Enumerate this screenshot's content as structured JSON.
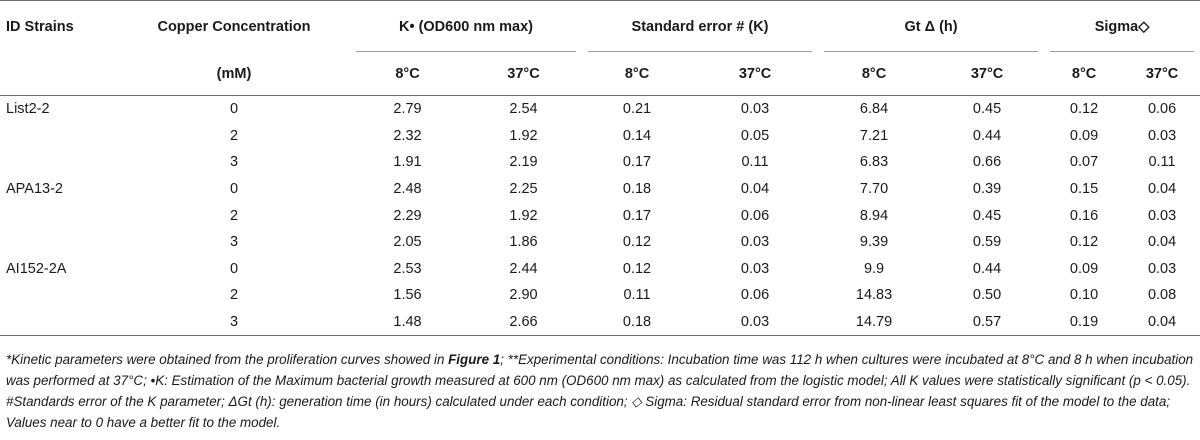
{
  "headers": {
    "strain": "ID Strains",
    "copper": "Copper Concentration",
    "copper_unit": "(mM)",
    "k": "K• (OD600 nm max)",
    "se": "Standard error # (K)",
    "gt": "Gt Δ (h)",
    "sigma": "Sigma◇",
    "temp_low": "8°C",
    "temp_high": "37°C"
  },
  "rows": [
    {
      "strain": "List2-2",
      "cu": "0",
      "k8": "2.79",
      "k37": "2.54",
      "se8": "0.21",
      "se37": "0.03",
      "gt8": "6.84",
      "gt37": "0.45",
      "s8": "0.12",
      "s37": "0.06"
    },
    {
      "strain": "",
      "cu": "2",
      "k8": "2.32",
      "k37": "1.92",
      "se8": "0.14",
      "se37": "0.05",
      "gt8": "7.21",
      "gt37": "0.44",
      "s8": "0.09",
      "s37": "0.03"
    },
    {
      "strain": "",
      "cu": "3",
      "k8": "1.91",
      "k37": "2.19",
      "se8": "0.17",
      "se37": "0.11",
      "gt8": "6.83",
      "gt37": "0.66",
      "s8": "0.07",
      "s37": "0.11"
    },
    {
      "strain": "APA13-2",
      "cu": "0",
      "k8": "2.48",
      "k37": "2.25",
      "se8": "0.18",
      "se37": "0.04",
      "gt8": "7.70",
      "gt37": "0.39",
      "s8": "0.15",
      "s37": "0.04"
    },
    {
      "strain": "",
      "cu": "2",
      "k8": "2.29",
      "k37": "1.92",
      "se8": "0.17",
      "se37": "0.06",
      "gt8": "8.94",
      "gt37": "0.45",
      "s8": "0.16",
      "s37": "0.03"
    },
    {
      "strain": "",
      "cu": "3",
      "k8": "2.05",
      "k37": "1.86",
      "se8": "0.12",
      "se37": "0.03",
      "gt8": "9.39",
      "gt37": "0.59",
      "s8": "0.12",
      "s37": "0.04"
    },
    {
      "strain": "AI152-2A",
      "cu": "0",
      "k8": "2.53",
      "k37": "2.44",
      "se8": "0.12",
      "se37": "0.03",
      "gt8": "9.9",
      "gt37": "0.44",
      "s8": "0.09",
      "s37": "0.03"
    },
    {
      "strain": "",
      "cu": "2",
      "k8": "1.56",
      "k37": "2.90",
      "se8": "0.11",
      "se37": "0.06",
      "gt8": "14.83",
      "gt37": "0.50",
      "s8": "0.10",
      "s37": "0.08"
    },
    {
      "strain": "",
      "cu": "3",
      "k8": "1.48",
      "k37": "2.66",
      "se8": "0.18",
      "se37": "0.03",
      "gt8": "14.79",
      "gt37": "0.57",
      "s8": "0.19",
      "s37": "0.04"
    }
  ],
  "footnote": {
    "p1": "*Kinetic parameters were obtained from the proliferation curves showed in ",
    "fig_ref": "Figure 1",
    "p2": "; **Experimental conditions: Incubation time was 112 h when cultures were incubated at 8°C and 8 h when incubation was performed at 37°C; •K: Estimation of the Maximum bacterial growth measured at 600 nm (OD600 nm max) as calculated from the logistic model; All K values were statistically significant (p < 0.05). #Standards error of the K parameter; ΔGt (h): generation time (in hours) calculated under each condition; ◇ Sigma: Residual standard error from non-linear least squares fit of the model to the data; Values near to 0 have a better fit to the model."
  }
}
